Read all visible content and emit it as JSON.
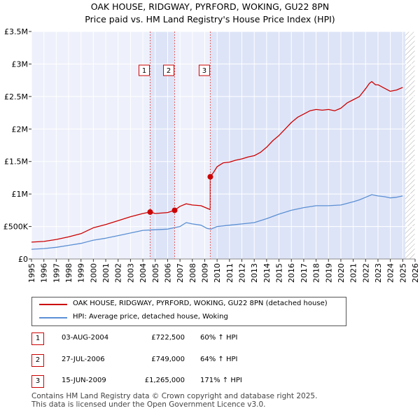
{
  "chart_data": {
    "type": "line",
    "title": "OAK HOUSE, RIDGWAY, PYRFORD, WOKING, GU22 8PN",
    "subtitle": "Price paid vs. HM Land Registry's House Price Index (HPI)",
    "xlabel": "",
    "ylabel": "",
    "xlim": [
      1995,
      2026
    ],
    "ylim": [
      0,
      3500000
    ],
    "x_ticks": [
      "1995",
      "1996",
      "1997",
      "1998",
      "1999",
      "2000",
      "2001",
      "2002",
      "2003",
      "2004",
      "2005",
      "2006",
      "2007",
      "2008",
      "2009",
      "2010",
      "2011",
      "2012",
      "2013",
      "2014",
      "2015",
      "2016",
      "2017",
      "2018",
      "2019",
      "2020",
      "2021",
      "2022",
      "2023",
      "2024",
      "2025",
      "2026"
    ],
    "y_ticks": [
      {
        "value": 0,
        "label": "£0"
      },
      {
        "value": 500000,
        "label": "£500K"
      },
      {
        "value": 1000000,
        "label": "£1M"
      },
      {
        "value": 1500000,
        "label": "£1.5M"
      },
      {
        "value": 2000000,
        "label": "£2M"
      },
      {
        "value": 2500000,
        "label": "£2.5M"
      },
      {
        "value": 3000000,
        "label": "£3M"
      },
      {
        "value": 3500000,
        "label": "£3.5M"
      }
    ],
    "grid": true,
    "shaded_ranges": [
      [
        2004.59,
        2006.57
      ],
      [
        2009.45,
        2025.2
      ]
    ],
    "hatched_from": 2025.2,
    "series": [
      {
        "name": "OAK HOUSE, RIDGWAY, PYRFORD, WOKING, GU22 8PN (detached house)",
        "color": "#cc0000",
        "x": [
          1995.0,
          1996.0,
          1997.0,
          1998.0,
          1999.0,
          2000.0,
          2001.0,
          2002.0,
          2003.0,
          2004.0,
          2004.59,
          2005.0,
          2006.0,
          2006.57,
          2007.0,
          2007.5,
          2008.0,
          2008.7,
          2009.2,
          2009.44,
          2009.45,
          2009.7,
          2010.0,
          2010.5,
          2011.0,
          2011.5,
          2012.0,
          2012.5,
          2013.0,
          2013.5,
          2014.0,
          2014.5,
          2015.0,
          2015.5,
          2016.0,
          2016.5,
          2017.0,
          2017.5,
          2018.0,
          2018.5,
          2019.0,
          2019.5,
          2020.0,
          2020.5,
          2021.0,
          2021.5,
          2022.0,
          2022.3,
          2022.5,
          2022.8,
          2023.0,
          2023.5,
          2024.0,
          2024.5,
          2025.0
        ],
        "y": [
          260000,
          270000,
          300000,
          340000,
          390000,
          480000,
          530000,
          590000,
          650000,
          700000,
          722500,
          700000,
          715000,
          749000,
          810000,
          850000,
          830000,
          820000,
          780000,
          760000,
          1265000,
          1330000,
          1420000,
          1480000,
          1490000,
          1520000,
          1540000,
          1570000,
          1590000,
          1640000,
          1720000,
          1820000,
          1900000,
          2000000,
          2100000,
          2180000,
          2230000,
          2280000,
          2300000,
          2290000,
          2300000,
          2280000,
          2320000,
          2400000,
          2450000,
          2500000,
          2620000,
          2700000,
          2730000,
          2680000,
          2680000,
          2630000,
          2580000,
          2600000,
          2640000
        ]
      },
      {
        "name": "HPI: Average price, detached house, Woking",
        "color": "#5b8fd4",
        "x": [
          1995.0,
          1996.0,
          1997.0,
          1998.0,
          1999.0,
          2000.0,
          2001.0,
          2002.0,
          2003.0,
          2004.0,
          2005.0,
          2006.0,
          2007.0,
          2007.5,
          2008.0,
          2008.7,
          2009.2,
          2009.5,
          2010.0,
          2011.0,
          2012.0,
          2013.0,
          2014.0,
          2015.0,
          2016.0,
          2017.0,
          2018.0,
          2019.0,
          2020.0,
          2021.0,
          2021.5,
          2022.0,
          2022.5,
          2023.0,
          2023.5,
          2024.0,
          2024.5,
          2025.0
        ],
        "y": [
          150000,
          160000,
          180000,
          210000,
          240000,
          290000,
          320000,
          360000,
          400000,
          440000,
          450000,
          460000,
          500000,
          560000,
          540000,
          520000,
          470000,
          460000,
          500000,
          520000,
          540000,
          560000,
          620000,
          690000,
          750000,
          790000,
          820000,
          820000,
          830000,
          880000,
          910000,
          950000,
          990000,
          970000,
          960000,
          940000,
          950000,
          970000
        ]
      }
    ],
    "annotations": [
      {
        "label": "1",
        "x": 2004.59,
        "y": 722500
      },
      {
        "label": "2",
        "x": 2006.57,
        "y": 749000
      },
      {
        "label": "3",
        "x": 2009.45,
        "y": 1265000
      }
    ]
  },
  "legend": {
    "items": [
      {
        "label": "OAK HOUSE, RIDGWAY, PYRFORD, WOKING, GU22 8PN (detached house)",
        "color": "#cc0000"
      },
      {
        "label": "HPI: Average price, detached house, Woking",
        "color": "#5b8fd4"
      }
    ]
  },
  "transactions": [
    {
      "num": "1",
      "date": "03-AUG-2004",
      "price": "£722,500",
      "hpi": "60% ↑ HPI"
    },
    {
      "num": "2",
      "date": "27-JUL-2006",
      "price": "£749,000",
      "hpi": "64% ↑ HPI"
    },
    {
      "num": "3",
      "date": "15-JUN-2009",
      "price": "£1,265,000",
      "hpi": "171% ↑ HPI"
    }
  ],
  "footer": {
    "line1": "Contains HM Land Registry data © Crown copyright and database right 2025.",
    "line2": "This data is licensed under the Open Government Licence v3.0."
  }
}
